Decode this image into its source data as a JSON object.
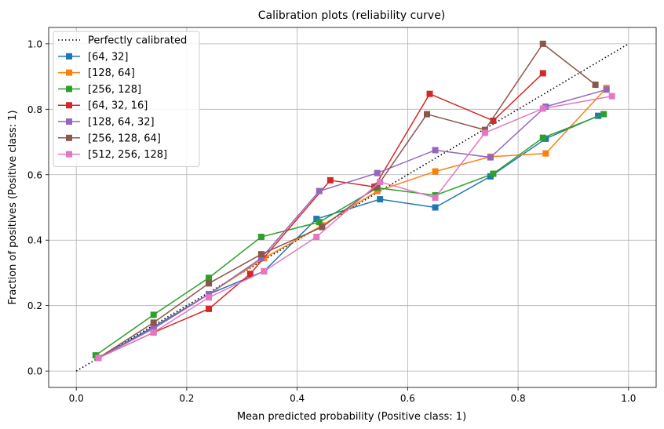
{
  "chart_data": {
    "type": "line",
    "title": "Calibration plots (reliability curve)",
    "xlabel": "Mean predicted probability (Positive class: 1)",
    "ylabel": "Fraction of positives (Positive class: 1)",
    "xlim": [
      -0.05,
      1.05
    ],
    "ylim": [
      -0.05,
      1.05
    ],
    "xticks": [
      0.0,
      0.2,
      0.4,
      0.6,
      0.8,
      1.0
    ],
    "yticks": [
      0.0,
      0.2,
      0.4,
      0.6,
      0.8,
      1.0
    ],
    "xtick_labels": [
      "0.0",
      "0.2",
      "0.4",
      "0.6",
      "0.8",
      "1.0"
    ],
    "ytick_labels": [
      "0.0",
      "0.2",
      "0.4",
      "0.6",
      "0.8",
      "1.0"
    ],
    "grid": true,
    "legend_position": "top-left",
    "reference": {
      "name": "Perfectly calibrated",
      "x": [
        0,
        1
      ],
      "y": [
        0,
        1
      ],
      "color": "#000000",
      "style": "dotted"
    },
    "series": [
      {
        "name": "[64, 32]",
        "color": "#1f77b4",
        "x": [
          0.04,
          0.14,
          0.24,
          0.34,
          0.435,
          0.55,
          0.65,
          0.75,
          0.85,
          0.945
        ],
        "y": [
          0.04,
          0.135,
          0.235,
          0.305,
          0.465,
          0.525,
          0.5,
          0.595,
          0.71,
          0.78
        ]
      },
      {
        "name": "[128, 64]",
        "color": "#ff7f0e",
        "x": [
          0.04,
          0.14,
          0.24,
          0.34,
          0.445,
          0.545,
          0.65,
          0.75,
          0.85,
          0.96
        ],
        "y": [
          0.04,
          0.13,
          0.235,
          0.345,
          0.445,
          0.55,
          0.61,
          0.655,
          0.665,
          0.865
        ]
      },
      {
        "name": "[256, 128]",
        "color": "#2ca02c",
        "x": [
          0.035,
          0.14,
          0.24,
          0.335,
          0.44,
          0.545,
          0.65,
          0.755,
          0.845,
          0.955
        ],
        "y": [
          0.048,
          0.172,
          0.285,
          0.41,
          0.455,
          0.56,
          0.537,
          0.603,
          0.713,
          0.785
        ]
      },
      {
        "name": "[64, 32, 16]",
        "color": "#d62728",
        "x": [
          0.04,
          0.14,
          0.24,
          0.315,
          0.46,
          0.54,
          0.64,
          0.755,
          0.845
        ],
        "y": [
          0.04,
          0.118,
          0.19,
          0.297,
          0.583,
          0.563,
          0.847,
          0.765,
          0.91
        ]
      },
      {
        "name": "[128, 64, 32]",
        "color": "#9467bd",
        "x": [
          0.04,
          0.14,
          0.24,
          0.335,
          0.44,
          0.545,
          0.65,
          0.75,
          0.85,
          0.96
        ],
        "y": [
          0.04,
          0.13,
          0.235,
          0.345,
          0.55,
          0.605,
          0.675,
          0.653,
          0.808,
          0.86
        ]
      },
      {
        "name": "[256, 128, 64]",
        "color": "#8c564b",
        "x": [
          0.04,
          0.14,
          0.24,
          0.335,
          0.445,
          0.545,
          0.635,
          0.74,
          0.845,
          0.94
        ],
        "y": [
          0.04,
          0.148,
          0.268,
          0.357,
          0.44,
          0.565,
          0.785,
          0.737,
          1.0,
          0.875
        ]
      },
      {
        "name": "[512, 256, 128]",
        "color": "#e377c2",
        "x": [
          0.04,
          0.14,
          0.24,
          0.34,
          0.435,
          0.55,
          0.65,
          0.74,
          0.845,
          0.97
        ],
        "y": [
          0.04,
          0.118,
          0.225,
          0.305,
          0.41,
          0.578,
          0.53,
          0.728,
          0.802,
          0.84
        ]
      }
    ]
  }
}
